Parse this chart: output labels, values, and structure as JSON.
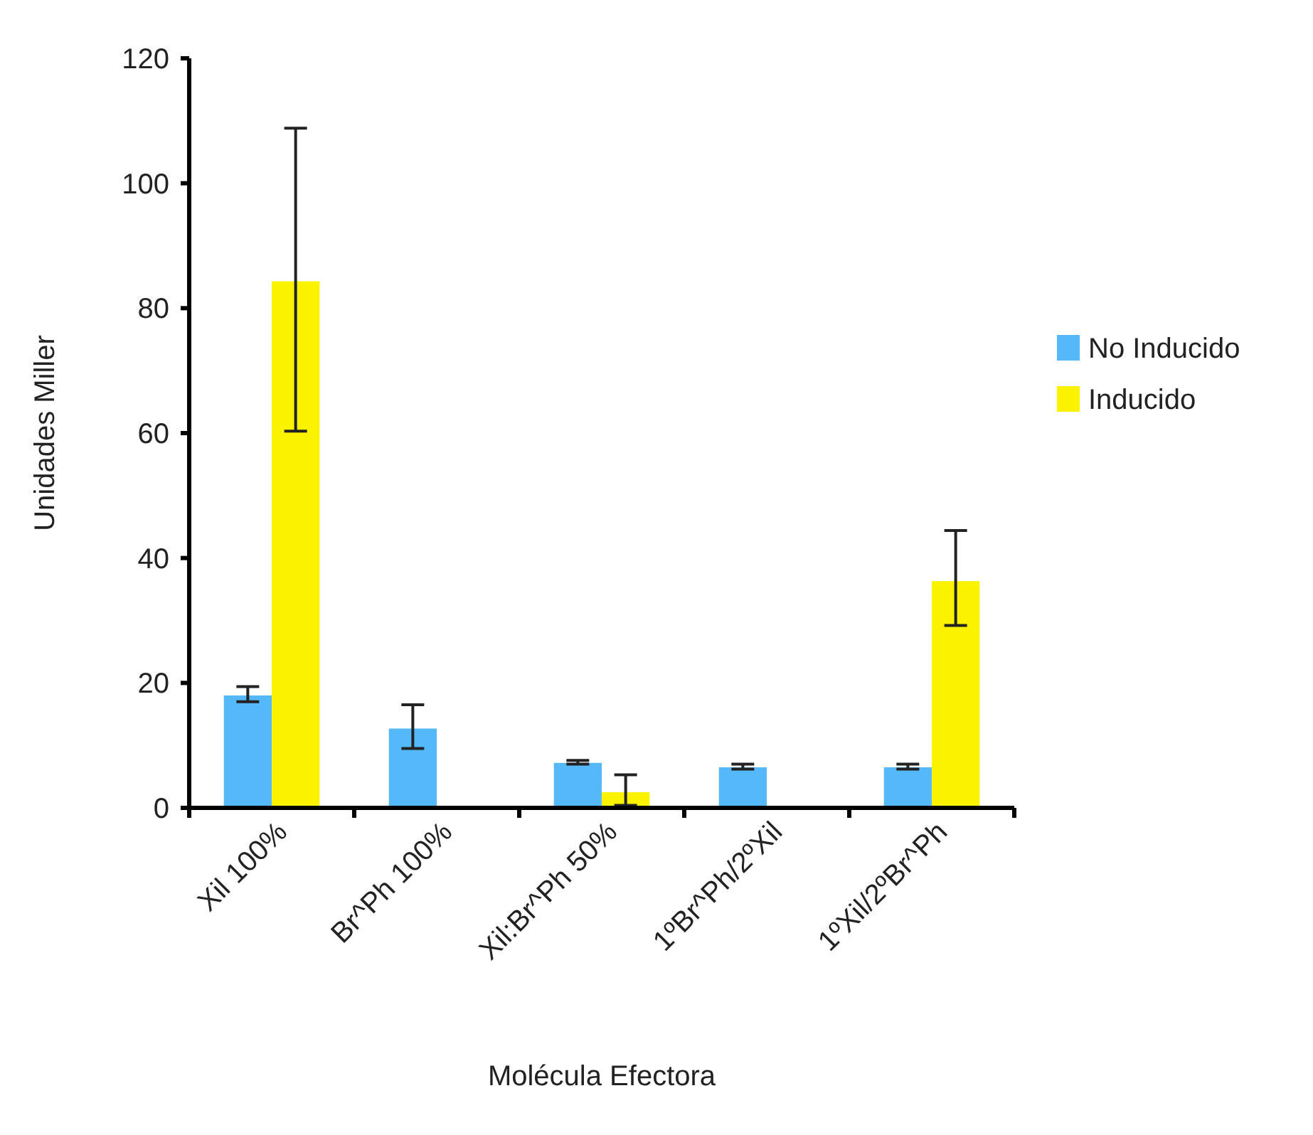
{
  "chart_data": {
    "type": "bar",
    "xlabel": "Molécula Efectora",
    "ylabel": "Unidades Miller",
    "categories": [
      "Xil 100%",
      "Br^Ph 100%",
      "Xil:Br^Ph 50%",
      "1ºBr^Ph/2ºXil",
      "1ºXil/2ºBr^Ph"
    ],
    "series": [
      {
        "name": "No Inducido",
        "color": "#55b9f9",
        "values": [
          18,
          12.7,
          7.2,
          6.5,
          6.5
        ],
        "errors": [
          [
            17,
            19.4
          ],
          [
            9.5,
            16.5
          ],
          [
            7,
            7.6
          ],
          [
            6.2,
            7
          ],
          [
            6.2,
            7
          ]
        ]
      },
      {
        "name": "Inducido",
        "color": "#fbf200",
        "values": [
          84.3,
          null,
          2.5,
          null,
          36.3
        ],
        "errors": [
          [
            60.3,
            108.8
          ],
          null,
          [
            0.4,
            5.3
          ],
          null,
          [
            29.2,
            44.4
          ]
        ]
      }
    ],
    "ylim": [
      0,
      120
    ],
    "yticks": [
      0,
      20,
      40,
      60,
      80,
      100,
      120
    ],
    "legend": "right",
    "grid": false
  }
}
